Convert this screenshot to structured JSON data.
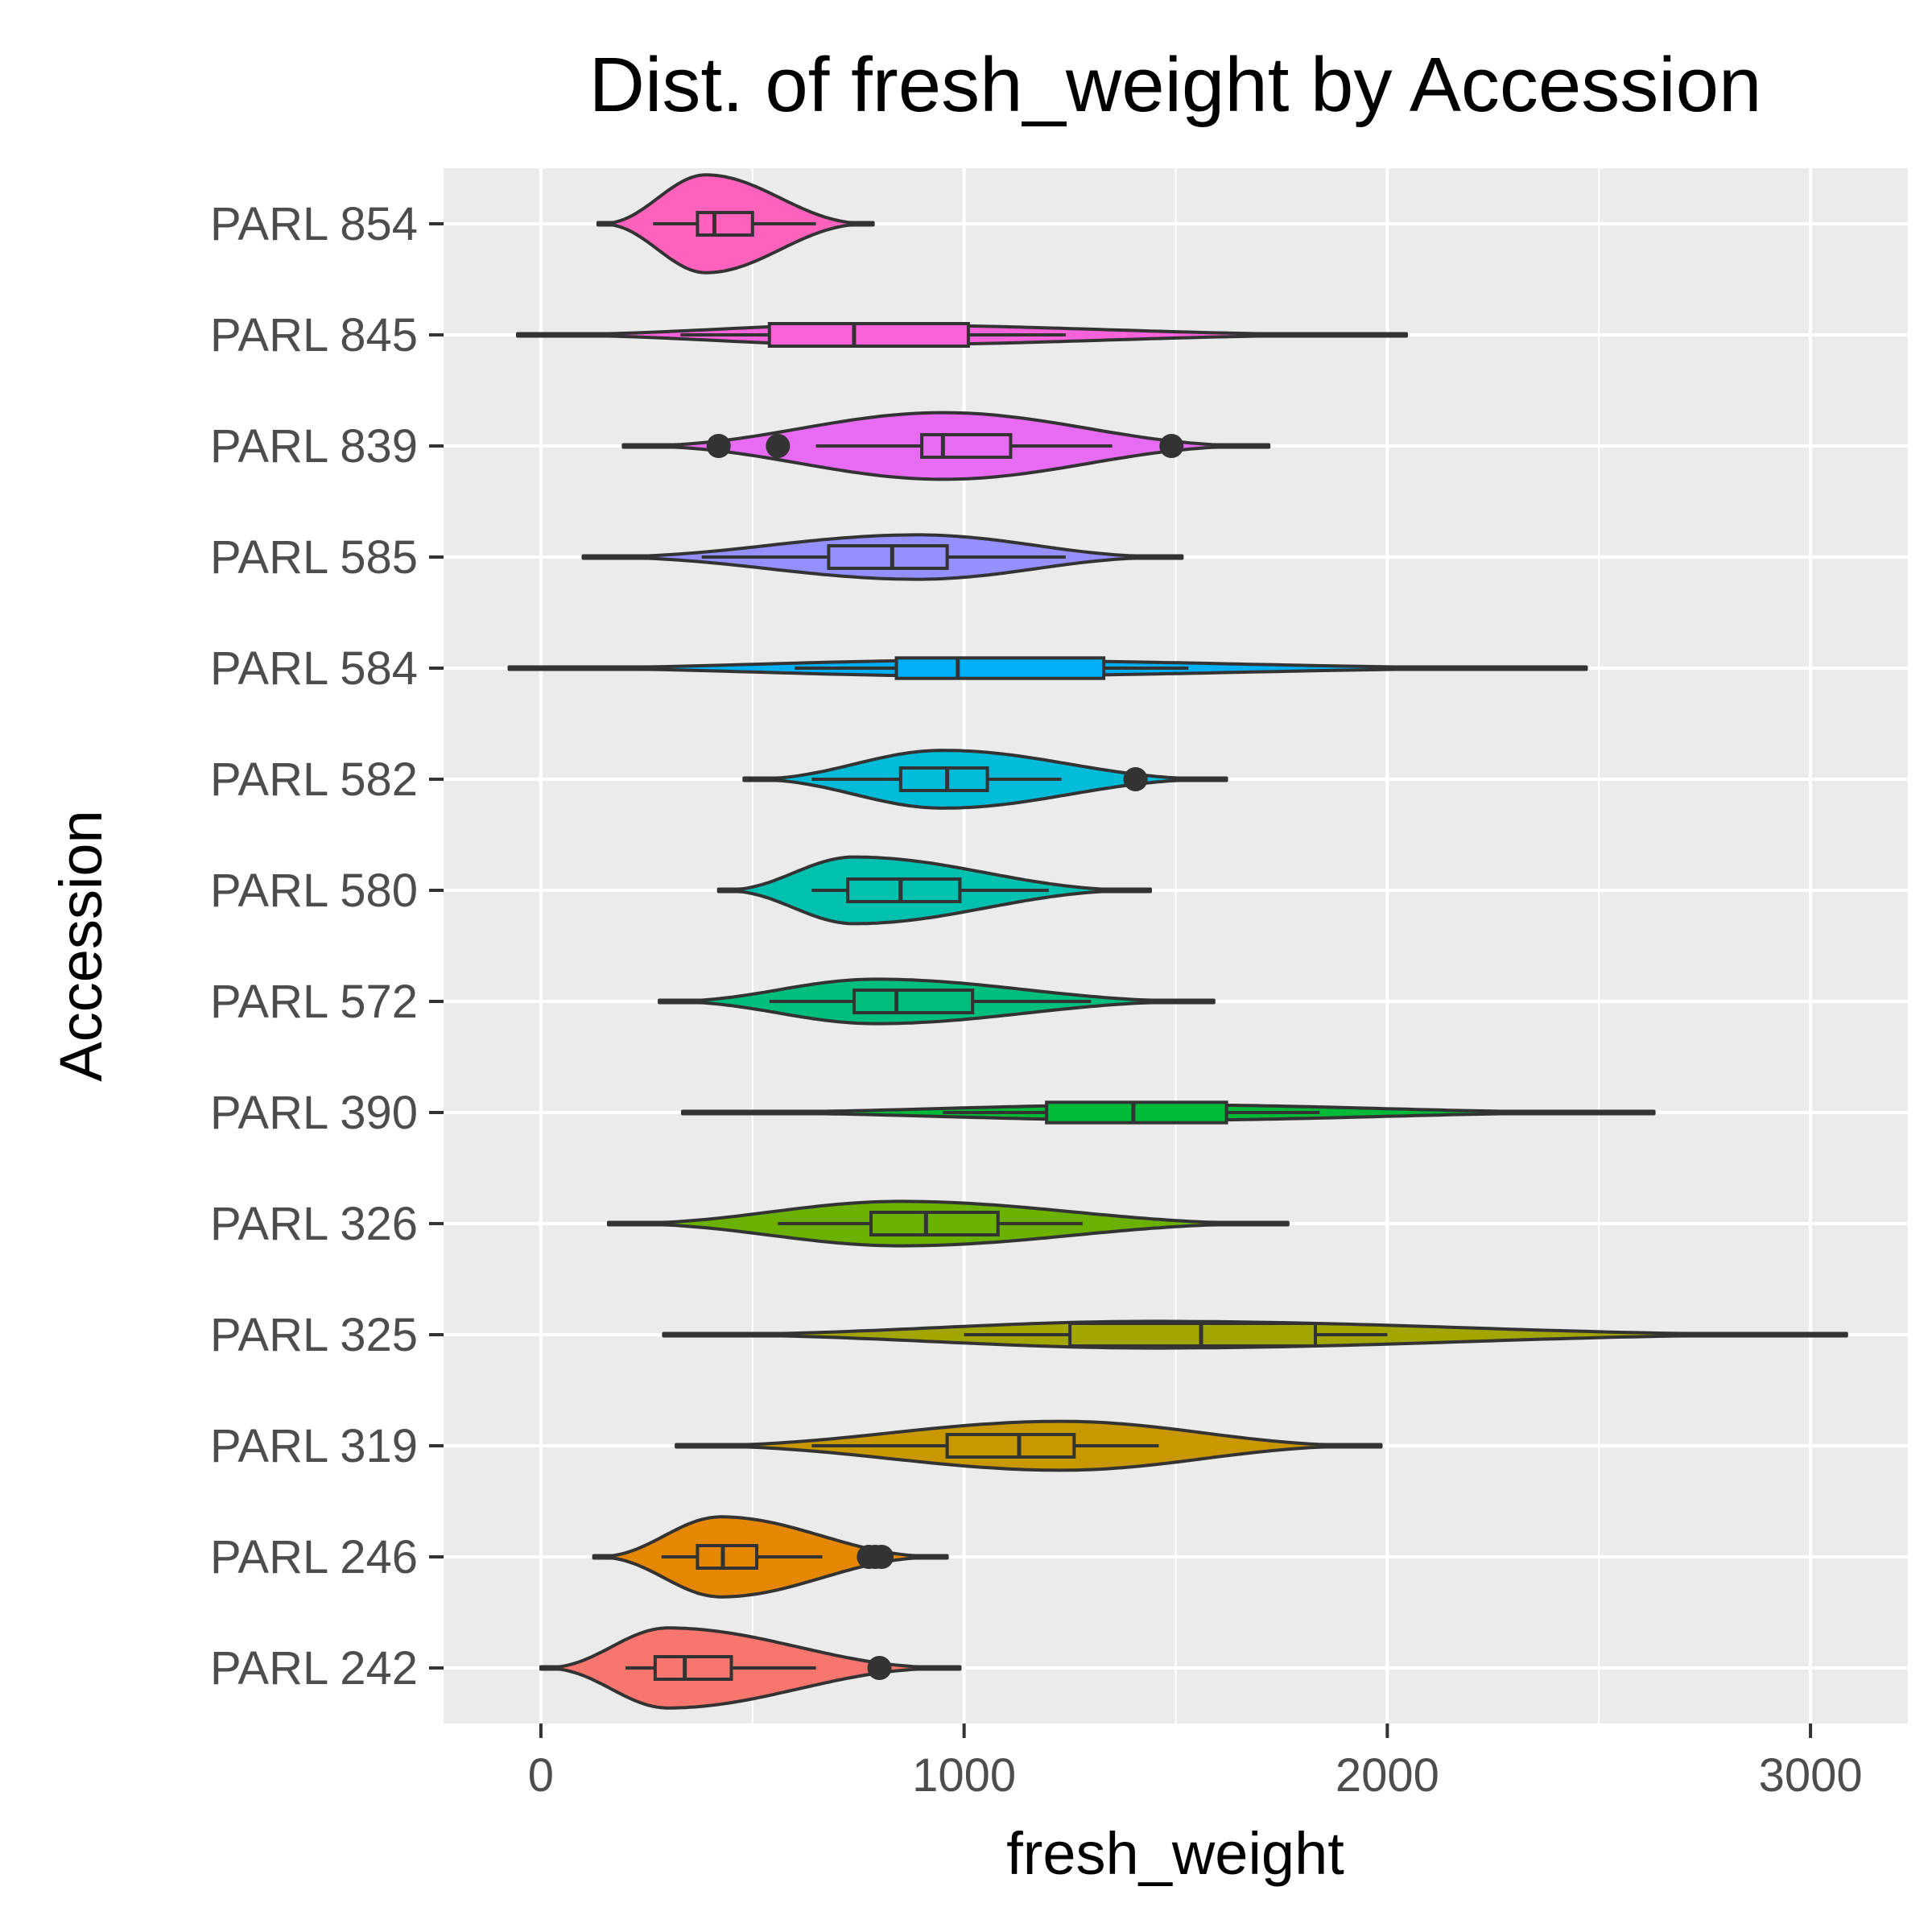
{
  "chart_data": {
    "type": "violin",
    "title": "Dist. of fresh_weight by Accession",
    "xlabel": "fresh_weight",
    "ylabel": "Accession",
    "xlim": [
      -230,
      3230
    ],
    "xticks": [
      0,
      1000,
      2000,
      3000
    ],
    "xtick_labels": [
      "0",
      "1000",
      "2000",
      "3000"
    ],
    "orientation": "horizontal",
    "grid": true,
    "legend": "none",
    "categories": [
      "PARL 242",
      "PARL 246",
      "PARL 319",
      "PARL 325",
      "PARL 326",
      "PARL 390",
      "PARL 572",
      "PARL 580",
      "PARL 582",
      "PARL 584",
      "PARL 585",
      "PARL 839",
      "PARL 845",
      "PARL 854"
    ],
    "series": [
      {
        "category": "PARL 242",
        "color": "#F8766D",
        "range": [
          0,
          990
        ],
        "peak": 300,
        "half_width": 0.36,
        "q1": 270,
        "median": 340,
        "q3": 450,
        "whisker_low": 200,
        "whisker_high": 650,
        "outliers": [
          800
        ]
      },
      {
        "category": "PARL 246",
        "color": "#E58700",
        "range": [
          125,
          960
        ],
        "peak": 425,
        "half_width": 0.36,
        "q1": 370,
        "median": 430,
        "q3": 510,
        "whisker_low": 285,
        "whisker_high": 665,
        "outliers": [
          775,
          790,
          805
        ]
      },
      {
        "category": "PARL 319",
        "color": "#C99800",
        "range": [
          320,
          1985
        ],
        "peak": 1230,
        "half_width": 0.22,
        "q1": 960,
        "median": 1130,
        "q3": 1260,
        "whisker_low": 640,
        "whisker_high": 1460,
        "outliers": []
      },
      {
        "category": "PARL 325",
        "color": "#A3A500",
        "range": [
          290,
          3085
        ],
        "peak": 1450,
        "half_width": 0.12,
        "q1": 1250,
        "median": 1560,
        "q3": 1830,
        "whisker_low": 1000,
        "whisker_high": 2000,
        "outliers": []
      },
      {
        "category": "PARL 326",
        "color": "#6BB100",
        "range": [
          160,
          1765
        ],
        "peak": 850,
        "half_width": 0.2,
        "q1": 780,
        "median": 910,
        "q3": 1080,
        "whisker_low": 560,
        "whisker_high": 1280,
        "outliers": []
      },
      {
        "category": "PARL 390",
        "color": "#00BA38",
        "range": [
          335,
          2630
        ],
        "peak": 1450,
        "half_width": 0.07,
        "q1": 1195,
        "median": 1400,
        "q3": 1620,
        "whisker_low": 950,
        "whisker_high": 1840,
        "outliers": []
      },
      {
        "category": "PARL 572",
        "color": "#00BF7D",
        "range": [
          280,
          1590
        ],
        "peak": 790,
        "half_width": 0.2,
        "q1": 740,
        "median": 840,
        "q3": 1020,
        "whisker_low": 540,
        "whisker_high": 1300,
        "outliers": []
      },
      {
        "category": "PARL 580",
        "color": "#00C0AF",
        "range": [
          420,
          1440
        ],
        "peak": 740,
        "half_width": 0.3,
        "q1": 725,
        "median": 850,
        "q3": 990,
        "whisker_low": 640,
        "whisker_high": 1200,
        "outliers": []
      },
      {
        "category": "PARL 582",
        "color": "#00BCD8",
        "range": [
          480,
          1620
        ],
        "peak": 950,
        "half_width": 0.26,
        "q1": 850,
        "median": 960,
        "q3": 1055,
        "whisker_low": 640,
        "whisker_high": 1230,
        "outliers": [
          1405
        ]
      },
      {
        "category": "PARL 584",
        "color": "#00B0F6",
        "range": [
          -75,
          2470
        ],
        "peak": 1000,
        "half_width": 0.07,
        "q1": 840,
        "median": 985,
        "q3": 1330,
        "whisker_low": 600,
        "whisker_high": 1530,
        "outliers": []
      },
      {
        "category": "PARL 585",
        "color": "#9590FF",
        "range": [
          100,
          1515
        ],
        "peak": 890,
        "half_width": 0.2,
        "q1": 680,
        "median": 830,
        "q3": 960,
        "whisker_low": 380,
        "whisker_high": 1240,
        "outliers": []
      },
      {
        "category": "PARL 839",
        "color": "#E76BF3",
        "range": [
          195,
          1720
        ],
        "peak": 950,
        "half_width": 0.3,
        "q1": 900,
        "median": 950,
        "q3": 1110,
        "whisker_low": 650,
        "whisker_high": 1350,
        "outliers": [
          420,
          560,
          1490
        ]
      },
      {
        "category": "PARL 845",
        "color": "#FA62DB",
        "range": [
          -55,
          2045
        ],
        "peak": 760,
        "half_width": 0.09,
        "q1": 540,
        "median": 740,
        "q3": 1010,
        "whisker_low": 330,
        "whisker_high": 1240,
        "outliers": []
      },
      {
        "category": "PARL 854",
        "color": "#FF62BC",
        "range": [
          135,
          785
        ],
        "peak": 390,
        "half_width": 0.44,
        "q1": 370,
        "median": 410,
        "q3": 500,
        "whisker_low": 265,
        "whisker_high": 650,
        "outliers": []
      }
    ]
  }
}
